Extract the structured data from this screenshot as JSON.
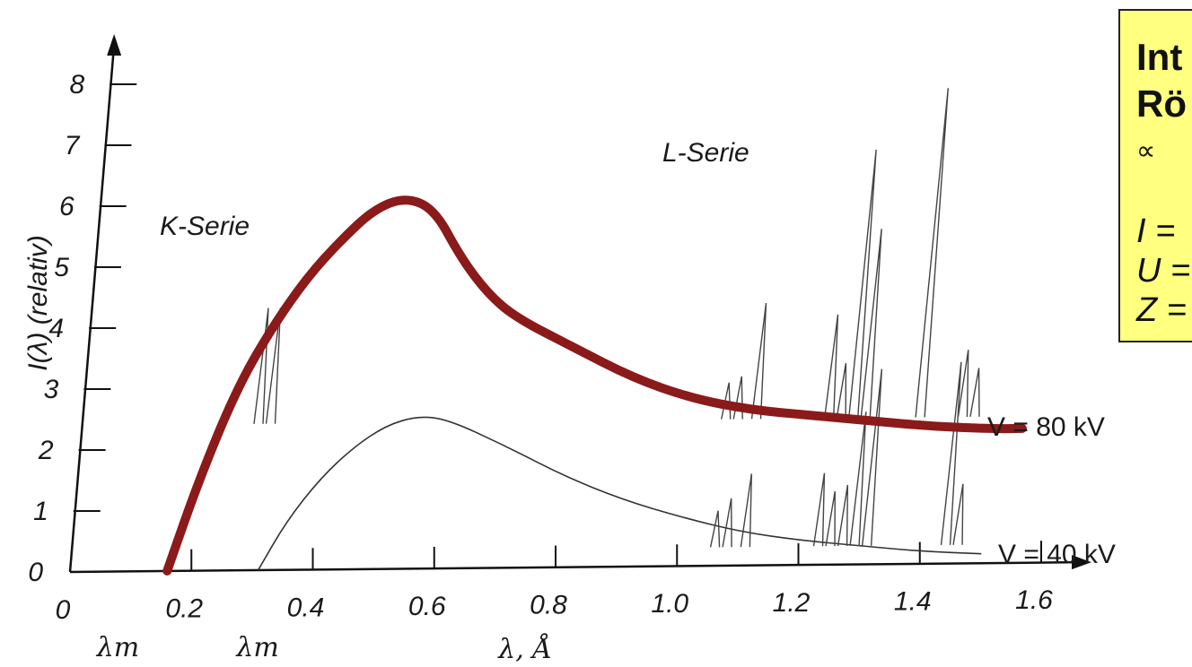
{
  "chart_data": {
    "type": "line",
    "xlabel": "λ, Å",
    "ylabel": "I(λ) (relativ)",
    "xlim": [
      0,
      1.6
    ],
    "ylim": [
      0,
      8.5
    ],
    "x_ticks": [
      "0",
      "0.2",
      "0.4",
      "0.6",
      "0.8",
      "1.0",
      "1.2",
      "1.4",
      "1.6"
    ],
    "y_ticks": [
      "0",
      "1",
      "2",
      "3",
      "4",
      "5",
      "6",
      "7",
      "8"
    ],
    "lambda_min_labels": [
      "λm",
      "λm"
    ],
    "series": [
      {
        "name": "V = 80 kV",
        "x": [
          0.16,
          0.2,
          0.25,
          0.3,
          0.35,
          0.4,
          0.45,
          0.5,
          0.55,
          0.6,
          0.65,
          0.7,
          0.8,
          0.9,
          1.0,
          1.1,
          1.2,
          1.3,
          1.4,
          1.5,
          1.55
        ],
        "y": [
          0,
          1.5,
          3.0,
          4.0,
          4.8,
          5.4,
          5.9,
          6.1,
          5.9,
          5.1,
          4.5,
          4.1,
          3.6,
          3.1,
          2.75,
          2.55,
          2.45,
          2.35,
          2.25,
          2.2,
          2.2
        ]
      },
      {
        "name": "V = 40 kV",
        "x": [
          0.31,
          0.35,
          0.4,
          0.45,
          0.5,
          0.55,
          0.6,
          0.7,
          0.8,
          0.9,
          1.0,
          1.1,
          1.2,
          1.3,
          1.4,
          1.5
        ],
        "y": [
          0,
          0.8,
          1.5,
          2.0,
          2.35,
          2.5,
          2.45,
          2.0,
          1.5,
          1.1,
          0.8,
          0.55,
          0.4,
          0.3,
          0.2,
          0.15
        ]
      }
    ],
    "annotations": [
      "K-Serie",
      "L-Serie"
    ],
    "colors": {
      "highlight_curve": "#8b1a1a",
      "scan_line": "#333333"
    }
  },
  "infobox": {
    "title_line1": "Int",
    "title_line2": "Rö",
    "proportional": "∝",
    "line_i": "I =",
    "line_u": "U =",
    "line_z": "Z =",
    "background": "#ffff80"
  }
}
